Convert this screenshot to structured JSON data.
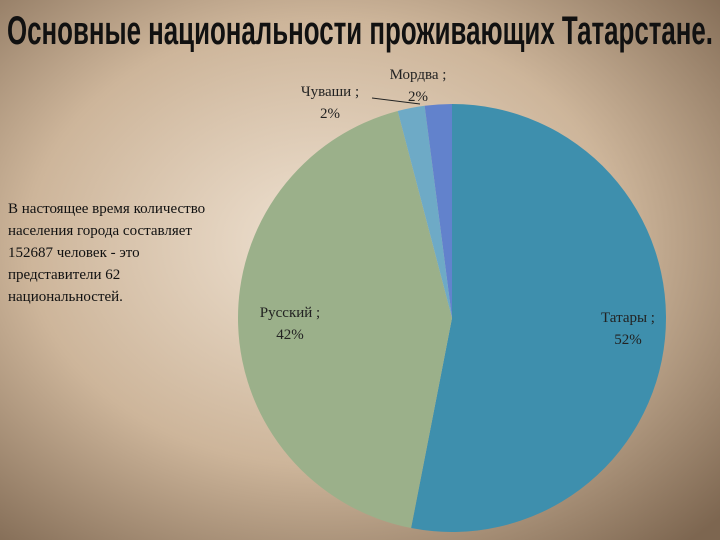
{
  "chart_data": {
    "type": "pie",
    "title": "Основные национальности проживающих Татарстане.",
    "categories": [
      "Татары ;",
      "Русский ;",
      "Чуваши ;",
      "Мордва ;"
    ],
    "values": [
      52,
      42,
      2,
      2
    ],
    "value_labels": [
      "52%",
      "42%",
      "2%",
      "2%"
    ],
    "colors": [
      "#3e8fad",
      "#9bb08a",
      "#6eaac6",
      "#6282cc"
    ],
    "annotation": [
      "В настоящее время количество",
      "населения города составляет",
      "152687 человек  - это",
      "представители 62",
      "национальностей."
    ]
  }
}
